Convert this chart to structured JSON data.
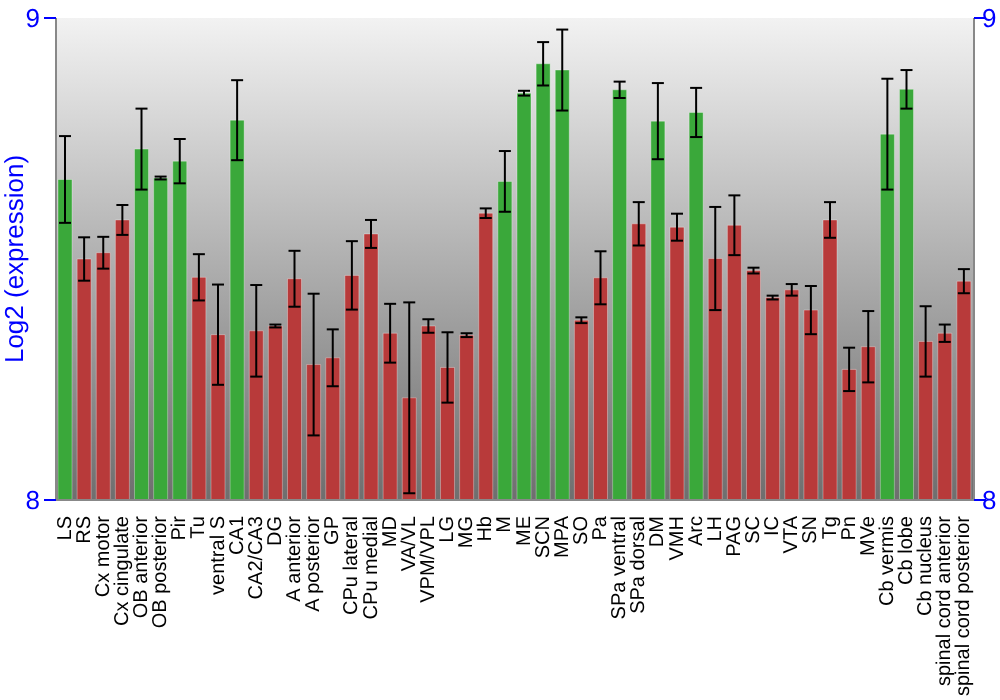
{
  "chart_data": {
    "type": "bar",
    "ylabel": "Log2 (expression)",
    "categories": [
      "LS",
      "RS",
      "Cx motor",
      "Cx cingulate",
      "OB anterior",
      "OB posterior",
      "Pir",
      "Tu",
      "ventral S",
      "CA1",
      "CA2/CA3",
      "DG",
      "A anterior",
      "A posterior",
      "GP",
      "CPu lateral",
      "CPu medial",
      "MD",
      "VA/VL",
      "VPM/VPL",
      "LG",
      "MG",
      "Hb",
      "M",
      "ME",
      "SCN",
      "MPA",
      "SO",
      "Pa",
      "SPa ventral",
      "SPa dorsal",
      "DM",
      "VMH",
      "Arc",
      "LH",
      "PAG",
      "SC",
      "IC",
      "VTA",
      "SN",
      "Tg",
      "Pn",
      "MVe",
      "Cb vermis",
      "Cb lobe",
      "Cb nucleus",
      "spinal cord anterior",
      "spinal cord posterior"
    ],
    "values": [
      8.665,
      8.5,
      8.513,
      8.581,
      8.728,
      8.668,
      8.703,
      8.462,
      8.343,
      8.788,
      8.351,
      8.361,
      8.459,
      8.281,
      8.295,
      8.466,
      8.552,
      8.346,
      8.212,
      8.361,
      8.275,
      8.342,
      8.595,
      8.661,
      8.844,
      8.905,
      8.892,
      8.373,
      8.461,
      8.851,
      8.573,
      8.786,
      8.566,
      8.804,
      8.501,
      8.57,
      8.476,
      8.42,
      8.436,
      8.394,
      8.581,
      8.271,
      8.318,
      8.759,
      8.852,
      8.329,
      8.346,
      8.454
    ],
    "errors": [
      0.09,
      0.045,
      0.033,
      0.031,
      0.084,
      0.003,
      0.046,
      0.048,
      0.104,
      0.083,
      0.095,
      0.003,
      0.058,
      0.147,
      0.059,
      0.071,
      0.029,
      0.061,
      0.198,
      0.014,
      0.073,
      0.004,
      0.01,
      0.063,
      0.005,
      0.045,
      0.084,
      0.006,
      0.055,
      0.017,
      0.045,
      0.079,
      0.028,
      0.051,
      0.107,
      0.062,
      0.006,
      0.004,
      0.012,
      0.05,
      0.037,
      0.045,
      0.074,
      0.115,
      0.04,
      0.073,
      0.018,
      0.025
    ],
    "colors": [
      "#3aa83a",
      "#b83a3a",
      "#b83a3a",
      "#b83a3a",
      "#3aa83a",
      "#3aa83a",
      "#3aa83a",
      "#b83a3a",
      "#b83a3a",
      "#3aa83a",
      "#b83a3a",
      "#b83a3a",
      "#b83a3a",
      "#b83a3a",
      "#b83a3a",
      "#b83a3a",
      "#b83a3a",
      "#b83a3a",
      "#b83a3a",
      "#b83a3a",
      "#b83a3a",
      "#b83a3a",
      "#b83a3a",
      "#3aa83a",
      "#3aa83a",
      "#3aa83a",
      "#3aa83a",
      "#b83a3a",
      "#b83a3a",
      "#3aa83a",
      "#b83a3a",
      "#3aa83a",
      "#b83a3a",
      "#3aa83a",
      "#b83a3a",
      "#b83a3a",
      "#b83a3a",
      "#b83a3a",
      "#b83a3a",
      "#b83a3a",
      "#b83a3a",
      "#b83a3a",
      "#b83a3a",
      "#3aa83a",
      "#3aa83a",
      "#b83a3a",
      "#b83a3a",
      "#b83a3a"
    ],
    "ylim": [
      8,
      9
    ],
    "yticks": [
      8,
      9
    ],
    "y2lim": [
      8,
      9
    ],
    "y2ticks": [
      8,
      9
    ],
    "grid": false,
    "legend": false
  }
}
